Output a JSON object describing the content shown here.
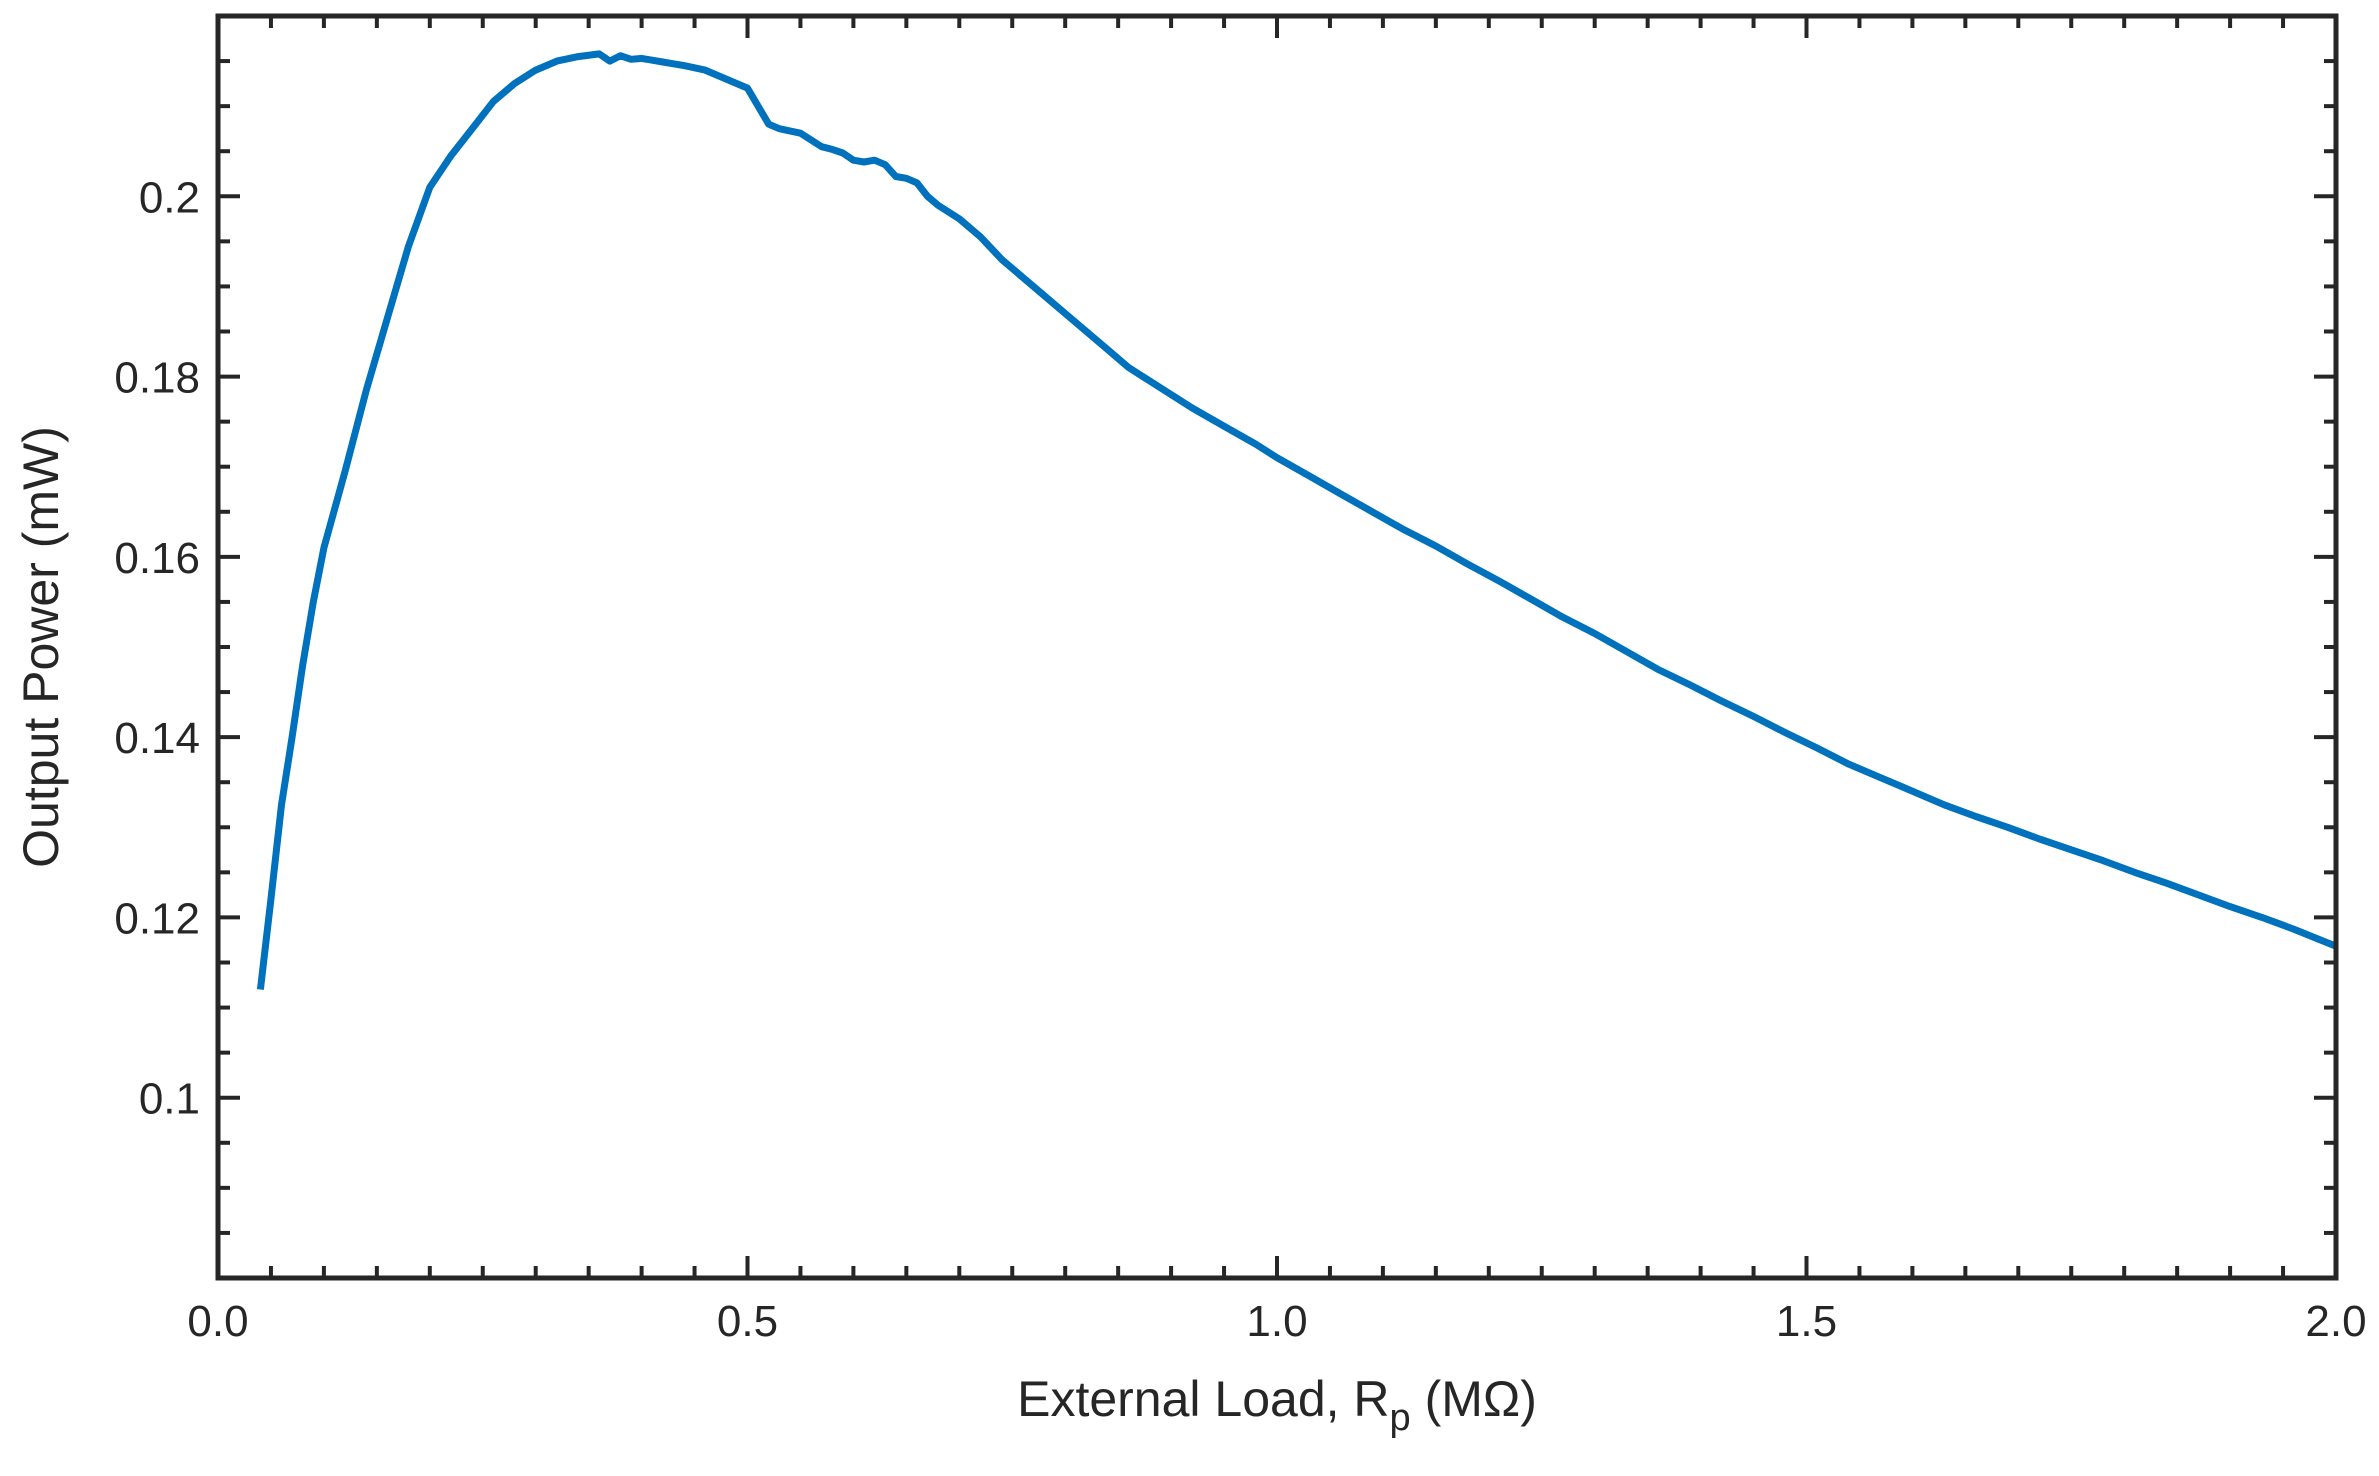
{
  "chart_data": {
    "type": "line",
    "xlabel": "External Load, R",
    "xlabel_sub": "p",
    "xlabel_unit": " (MΩ)",
    "ylabel": "Output Power (mW)",
    "xlim": [
      0,
      2.0
    ],
    "ylim": [
      0.08,
      0.22
    ],
    "xticks": [
      0,
      0.5,
      1.0,
      1.5,
      2.0
    ],
    "xtick_labels": [
      "0.0",
      "0.5",
      "1.0",
      "1.5",
      "2.0"
    ],
    "yticks": [
      0.1,
      0.12,
      0.14,
      0.16,
      0.18,
      0.2
    ],
    "ytick_labels": [
      "0.1",
      "0.12",
      "0.14",
      "0.16",
      "0.18",
      "0.2"
    ],
    "grid": false,
    "line_color": "#0072BD",
    "axis_color": "#262626",
    "series": [
      {
        "x": [
          0.04,
          0.05,
          0.06,
          0.07,
          0.08,
          0.09,
          0.1,
          0.12,
          0.14,
          0.16,
          0.18,
          0.2,
          0.22,
          0.24,
          0.26,
          0.28,
          0.3,
          0.32,
          0.34,
          0.36,
          0.37,
          0.38,
          0.39,
          0.4,
          0.41,
          0.42,
          0.43,
          0.44,
          0.46,
          0.48,
          0.5,
          0.52,
          0.53,
          0.55,
          0.57,
          0.58,
          0.59,
          0.6,
          0.61,
          0.62,
          0.63,
          0.64,
          0.65,
          0.66,
          0.67,
          0.68,
          0.7,
          0.72,
          0.74,
          0.76,
          0.78,
          0.8,
          0.82,
          0.84,
          0.86,
          0.88,
          0.9,
          0.92,
          0.95,
          0.98,
          1.0,
          1.03,
          1.06,
          1.09,
          1.12,
          1.15,
          1.18,
          1.21,
          1.24,
          1.27,
          1.3,
          1.33,
          1.36,
          1.39,
          1.42,
          1.45,
          1.48,
          1.51,
          1.54,
          1.57,
          1.6,
          1.63,
          1.66,
          1.69,
          1.72,
          1.75,
          1.78,
          1.81,
          1.84,
          1.87,
          1.9,
          1.93,
          1.96,
          2.0
        ],
        "y": [
          0.112,
          0.122,
          0.1325,
          0.14,
          0.148,
          0.155,
          0.161,
          0.1695,
          0.1785,
          0.1865,
          0.1945,
          0.201,
          0.2045,
          0.2075,
          0.2105,
          0.2125,
          0.214,
          0.215,
          0.2155,
          0.2158,
          0.215,
          0.2156,
          0.2152,
          0.2153,
          0.2151,
          0.2149,
          0.2147,
          0.2145,
          0.214,
          0.213,
          0.212,
          0.208,
          0.2075,
          0.207,
          0.2055,
          0.2052,
          0.2048,
          0.204,
          0.2038,
          0.204,
          0.2035,
          0.2022,
          0.202,
          0.2015,
          0.2,
          0.199,
          0.1975,
          0.1955,
          0.193,
          0.191,
          0.189,
          0.187,
          0.185,
          0.183,
          0.181,
          0.1795,
          0.178,
          0.1765,
          0.1745,
          0.1725,
          0.171,
          0.169,
          0.167,
          0.165,
          0.163,
          0.1612,
          0.1592,
          0.1573,
          0.1553,
          0.1533,
          0.1515,
          0.1495,
          0.1475,
          0.1458,
          0.144,
          0.1423,
          0.1405,
          0.1388,
          0.137,
          0.1355,
          0.134,
          0.1325,
          0.1312,
          0.13,
          0.1287,
          0.1275,
          0.1263,
          0.125,
          0.1238,
          0.1225,
          0.1212,
          0.12,
          0.1187,
          0.1168
        ]
      }
    ]
  }
}
